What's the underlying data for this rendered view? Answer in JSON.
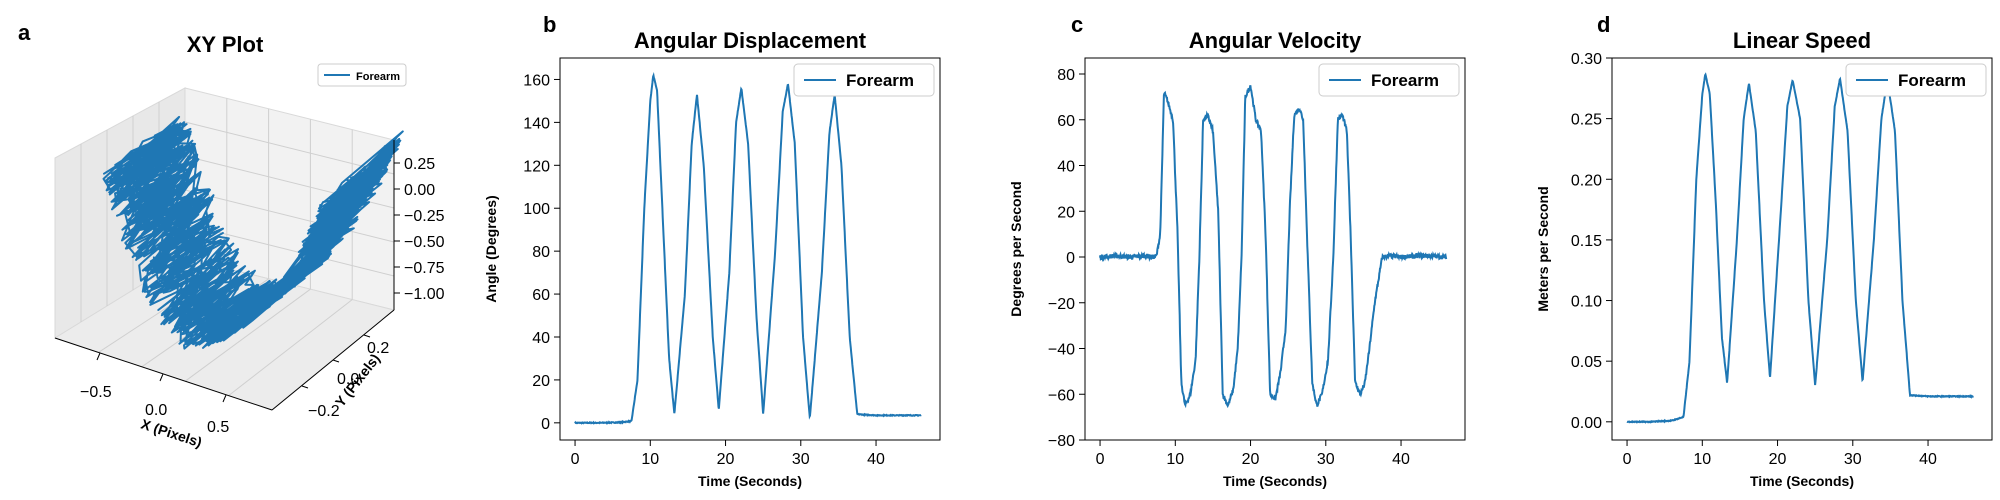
{
  "colors": {
    "series": "#1f77b4",
    "axis": "#000000",
    "pane": "#f2f2f2",
    "pane_grid": "#d0d0d0"
  },
  "chart_data": [
    {
      "id": "xy",
      "panel_label": "a",
      "type": "line3d",
      "title": "XY Plot",
      "xlabel": "X (Pixels)",
      "ylabel": "Y (Pixels)",
      "zlabel": "",
      "legend": {
        "placement": "top-right",
        "entries": [
          "Forearm"
        ]
      },
      "x_ticks": [
        "−0.5",
        "0.0",
        "0.5"
      ],
      "y_ticks": [
        "−0.2",
        "0.0",
        "0.2"
      ],
      "z_ticks": [
        "0.25",
        "0.00",
        "−0.25",
        "−0.50",
        "−0.75",
        "−1.00"
      ],
      "xlim": [
        -0.85,
        0.85
      ],
      "ylim": [
        -0.3,
        0.3
      ],
      "zlim": [
        -1.05,
        0.35
      ],
      "shape": {
        "x_extent": 0.8,
        "z_bottom": -0.98,
        "z_top": 0.35,
        "y_spread": 0.25,
        "note_cycles": 5
      }
    },
    {
      "id": "angdisp",
      "panel_label": "b",
      "type": "line",
      "title": "Angular Displacement",
      "xlabel": "Time (Seconds)",
      "ylabel": "Angle (Degrees)",
      "legend": {
        "placement": "top-right",
        "entries": [
          "Forearm"
        ]
      },
      "xlim": [
        -2,
        48.5
      ],
      "ylim": [
        -8,
        170
      ],
      "xticks": [
        0,
        10,
        20,
        30,
        40
      ],
      "yticks": [
        0,
        20,
        40,
        60,
        80,
        100,
        120,
        140,
        160
      ],
      "tick_labels_x": [
        "0",
        "10",
        "20",
        "30",
        "40"
      ],
      "tick_labels_y": [
        "0",
        "20",
        "40",
        "60",
        "80",
        "100",
        "120",
        "140",
        "160"
      ],
      "series": [
        {
          "name": "Forearm",
          "x": [
            0,
            3,
            6,
            7.5,
            8.3,
            9.2,
            10,
            10.4,
            10.9,
            11.6,
            12.5,
            13.2,
            14.6,
            15.5,
            16.2,
            17.1,
            18.3,
            19.1,
            20.5,
            21.4,
            22.1,
            23.0,
            24.1,
            25,
            26.6,
            27.6,
            28.3,
            29.2,
            30.3,
            31.2,
            32.8,
            33.8,
            34.5,
            35.4,
            36.5,
            37.5,
            40,
            43,
            46
          ],
          "y": [
            0,
            0,
            0.2,
            0.8,
            20,
            100,
            150,
            162,
            155,
            100,
            30,
            4,
            60,
            130,
            153,
            120,
            40,
            6,
            70,
            140,
            156,
            130,
            50,
            4,
            80,
            145,
            158,
            130,
            40,
            2,
            70,
            135,
            153,
            120,
            40,
            4,
            3.5,
            3.5,
            3.5
          ]
        }
      ]
    },
    {
      "id": "angvel",
      "panel_label": "c",
      "type": "line",
      "title": "Angular Velocity",
      "xlabel": "Time (Seconds)",
      "ylabel": "Degrees per Second",
      "legend": {
        "placement": "top-right",
        "entries": [
          "Forearm"
        ]
      },
      "xlim": [
        -2,
        48.5
      ],
      "ylim": [
        -80,
        87
      ],
      "xticks": [
        0,
        10,
        20,
        30,
        40
      ],
      "yticks": [
        -80,
        -60,
        -40,
        -20,
        0,
        20,
        40,
        60,
        80
      ],
      "tick_labels_x": [
        "0",
        "10",
        "20",
        "30",
        "40"
      ],
      "tick_labels_y": [
        "−80",
        "−60",
        "−40",
        "−20",
        "0",
        "20",
        "40",
        "60",
        "80"
      ],
      "series": [
        {
          "name": "Forearm",
          "x": [
            0,
            2,
            4,
            6,
            7,
            7.5,
            8,
            8.5,
            9,
            9.7,
            10.3,
            10.8,
            11.3,
            12,
            12.7,
            13.2,
            13.7,
            14.3,
            15,
            15.7,
            16.3,
            17,
            17.7,
            18.3,
            18.8,
            19.3,
            20,
            20.7,
            21.4,
            22,
            22.6,
            23.3,
            24,
            24.7,
            25.2,
            25.8,
            26.5,
            27,
            27.5,
            28.2,
            28.8,
            29.5,
            30.3,
            31,
            31.6,
            32.2,
            32.8,
            33.3,
            33.9,
            34.6,
            35.2,
            35.8,
            36.5,
            37.5,
            38.5,
            40,
            43,
            46
          ],
          "y": [
            0,
            0.5,
            0,
            0.5,
            0,
            0.5,
            10,
            72,
            68,
            60,
            10,
            -55,
            -65,
            -60,
            -45,
            0,
            60,
            62,
            55,
            20,
            -60,
            -65,
            -58,
            -40,
            0,
            70,
            75,
            60,
            55,
            10,
            -60,
            -62,
            -50,
            -30,
            20,
            62,
            65,
            60,
            10,
            -55,
            -65,
            -60,
            -45,
            0,
            60,
            62,
            55,
            10,
            -55,
            -60,
            -55,
            -40,
            -20,
            0,
            0.5,
            0,
            0.5,
            0
          ]
        }
      ]
    },
    {
      "id": "linspeed",
      "panel_label": "d",
      "type": "line",
      "title": "Linear Speed",
      "xlabel": "Time (Seconds)",
      "ylabel": "Meters per Second",
      "legend": {
        "placement": "top-right",
        "entries": [
          "Forearm"
        ]
      },
      "xlim": [
        -2,
        48.5
      ],
      "ylim": [
        -0.015,
        0.3
      ],
      "xticks": [
        0,
        10,
        20,
        30,
        40
      ],
      "yticks": [
        0.0,
        0.05,
        0.1,
        0.15,
        0.2,
        0.25,
        0.3
      ],
      "tick_labels_x": [
        "0",
        "10",
        "20",
        "30",
        "40"
      ],
      "tick_labels_y": [
        "0.00",
        "0.05",
        "0.10",
        "0.15",
        "0.20",
        "0.25",
        "0.30"
      ],
      "series": [
        {
          "name": "Forearm",
          "x": [
            0,
            3,
            6,
            7.5,
            8.3,
            9.2,
            10,
            10.4,
            11,
            11.8,
            12.6,
            13.3,
            14.6,
            15.5,
            16.2,
            17.1,
            18.2,
            19,
            20.4,
            21.3,
            22,
            23,
            24.1,
            25,
            26.6,
            27.6,
            28.3,
            29.3,
            30.4,
            31.3,
            32.8,
            33.8,
            34.6,
            35.6,
            36.6,
            37.6,
            40,
            43,
            46
          ],
          "y": [
            0,
            0,
            0.001,
            0.004,
            0.05,
            0.2,
            0.27,
            0.287,
            0.27,
            0.18,
            0.07,
            0.032,
            0.15,
            0.25,
            0.279,
            0.24,
            0.1,
            0.036,
            0.17,
            0.26,
            0.282,
            0.25,
            0.1,
            0.03,
            0.15,
            0.26,
            0.283,
            0.24,
            0.1,
            0.033,
            0.15,
            0.25,
            0.282,
            0.24,
            0.1,
            0.022,
            0.021,
            0.021,
            0.021
          ]
        }
      ]
    }
  ]
}
